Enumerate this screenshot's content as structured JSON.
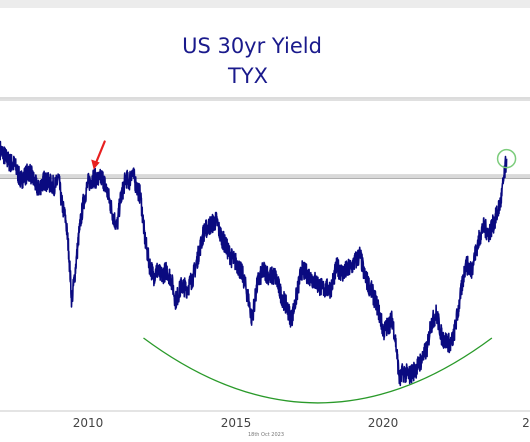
{
  "chart_data": {
    "type": "line",
    "title": "US 30yr Yield",
    "subtitle": "TYX",
    "xlabel": "",
    "ylabel": "",
    "date_stamp": "18th Oct 2023",
    "x_ticks": [
      "2010",
      "2015",
      "2020",
      "2"
    ],
    "xlim": [
      2006.5,
      2024.6
    ],
    "ylim": [
      0.9,
      5.8
    ],
    "grid": false,
    "legend": "none",
    "resistance_band": [
      4.58,
      4.65
    ],
    "annotations": [
      {
        "type": "arrow",
        "target_x": 2009.7,
        "target_y": 4.66
      },
      {
        "type": "circle",
        "x": 2023.8,
        "y": 4.9
      },
      {
        "type": "arc",
        "x_start": 2011.4,
        "x_end": 2023.3,
        "y_low": 0.95,
        "y_high": 2.0
      }
    ],
    "colors": {
      "line": "#0a0a80",
      "title": "#1a1a8c",
      "arrow": "#e82020",
      "arc": "#2a9a2a",
      "circle": "#7ccc7c",
      "band": "#d2d2d2"
    },
    "series": [
      {
        "x": [
          2006.5,
          2006.8,
          2007.0,
          2007.2,
          2007.5,
          2007.8,
          2008.0,
          2008.2,
          2008.4,
          2008.5,
          2008.6,
          2008.75,
          2008.85,
          2008.95,
          2009.05,
          2009.2,
          2009.35,
          2009.5,
          2009.7,
          2009.85,
          2010.0,
          2010.2,
          2010.35,
          2010.5,
          2010.6,
          2010.8,
          2010.9,
          2011.0,
          2011.2,
          2011.3,
          2011.45,
          2011.6,
          2011.75,
          2011.85,
          2012.0,
          2012.2,
          2012.35,
          2012.5,
          2012.7,
          2012.9,
          2013.1,
          2013.3,
          2013.45,
          2013.6,
          2013.9,
          2014.0,
          2014.2,
          2014.4,
          2014.6,
          2014.8,
          2015.0,
          2015.1,
          2015.3,
          2015.5,
          2015.7,
          2015.9,
          2016.1,
          2016.3,
          2016.45,
          2016.55,
          2016.8,
          2016.95,
          2017.2,
          2017.5,
          2017.8,
          2018.0,
          2018.2,
          2018.5,
          2018.8,
          2018.95,
          2019.2,
          2019.4,
          2019.6,
          2019.75,
          2019.9,
          2020.0,
          2020.15,
          2020.25,
          2020.5,
          2020.7,
          2020.9,
          2021.1,
          2021.2,
          2021.4,
          2021.6,
          2021.75,
          2021.9,
          2022.0,
          2022.2,
          2022.4,
          2022.6,
          2022.8,
          2023.0,
          2023.2,
          2023.4,
          2023.6,
          2023.8
        ],
        "y": [
          5.05,
          4.85,
          4.8,
          4.55,
          4.7,
          4.4,
          4.55,
          4.5,
          4.45,
          4.6,
          4.2,
          3.9,
          3.4,
          2.6,
          3.0,
          3.7,
          4.2,
          4.5,
          4.6,
          4.55,
          4.6,
          4.3,
          4.0,
          3.8,
          4.2,
          4.6,
          4.5,
          4.7,
          4.4,
          4.3,
          3.6,
          3.2,
          3.0,
          3.1,
          3.0,
          3.1,
          2.95,
          2.6,
          2.85,
          2.8,
          3.0,
          3.4,
          3.7,
          3.8,
          3.9,
          3.7,
          3.5,
          3.3,
          3.2,
          3.0,
          2.6,
          2.3,
          2.9,
          3.1,
          3.0,
          3.0,
          2.7,
          2.5,
          2.3,
          2.5,
          3.1,
          3.05,
          2.95,
          2.8,
          2.8,
          3.15,
          3.05,
          3.15,
          3.35,
          3.0,
          2.75,
          2.5,
          2.1,
          2.2,
          2.3,
          2.0,
          1.3,
          1.45,
          1.4,
          1.5,
          1.65,
          1.85,
          2.2,
          2.4,
          2.0,
          1.95,
          1.9,
          2.05,
          2.6,
          3.2,
          3.1,
          3.5,
          3.8,
          3.7,
          3.9,
          4.2,
          4.9
        ]
      }
    ]
  }
}
